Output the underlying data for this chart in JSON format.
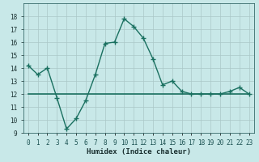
{
  "xlabel": "Humidex (Indice chaleur)",
  "x": [
    0,
    1,
    2,
    3,
    4,
    5,
    6,
    7,
    8,
    9,
    10,
    11,
    12,
    13,
    14,
    15,
    16,
    17,
    18,
    19,
    20,
    21,
    22,
    23
  ],
  "y_main": [
    14.2,
    13.5,
    14.0,
    11.7,
    9.3,
    10.1,
    11.5,
    13.5,
    15.9,
    16.0,
    17.8,
    17.2,
    16.3,
    14.7,
    12.7,
    13.0,
    12.2,
    12.0,
    12.0,
    12.0,
    12.0,
    12.2,
    12.5,
    12.0
  ],
  "y_flat": [
    12.0,
    12.0,
    12.0,
    12.0,
    12.0,
    12.0,
    12.0,
    12.0,
    12.0,
    12.0,
    12.0,
    12.0,
    12.0,
    12.0,
    12.0,
    12.0,
    12.0,
    12.0,
    12.0,
    12.0,
    12.0,
    12.0,
    12.0,
    12.0
  ],
  "line_color": "#1a7060",
  "flat_color": "#1a7060",
  "bg_color": "#c8e8e8",
  "grid_color": "#aac8c8",
  "ylim": [
    9,
    19
  ],
  "xlim": [
    -0.5,
    23.5
  ],
  "yticks": [
    9,
    10,
    11,
    12,
    13,
    14,
    15,
    16,
    17,
    18
  ],
  "xtick_labels": [
    "0",
    "1",
    "2",
    "3",
    "4",
    "5",
    "6",
    "7",
    "8",
    "9",
    "10",
    "11",
    "12",
    "13",
    "14",
    "15",
    "16",
    "17",
    "18",
    "19",
    "20",
    "21",
    "22",
    "23"
  ],
  "tick_fontsize": 5.5,
  "xlabel_fontsize": 6.5
}
